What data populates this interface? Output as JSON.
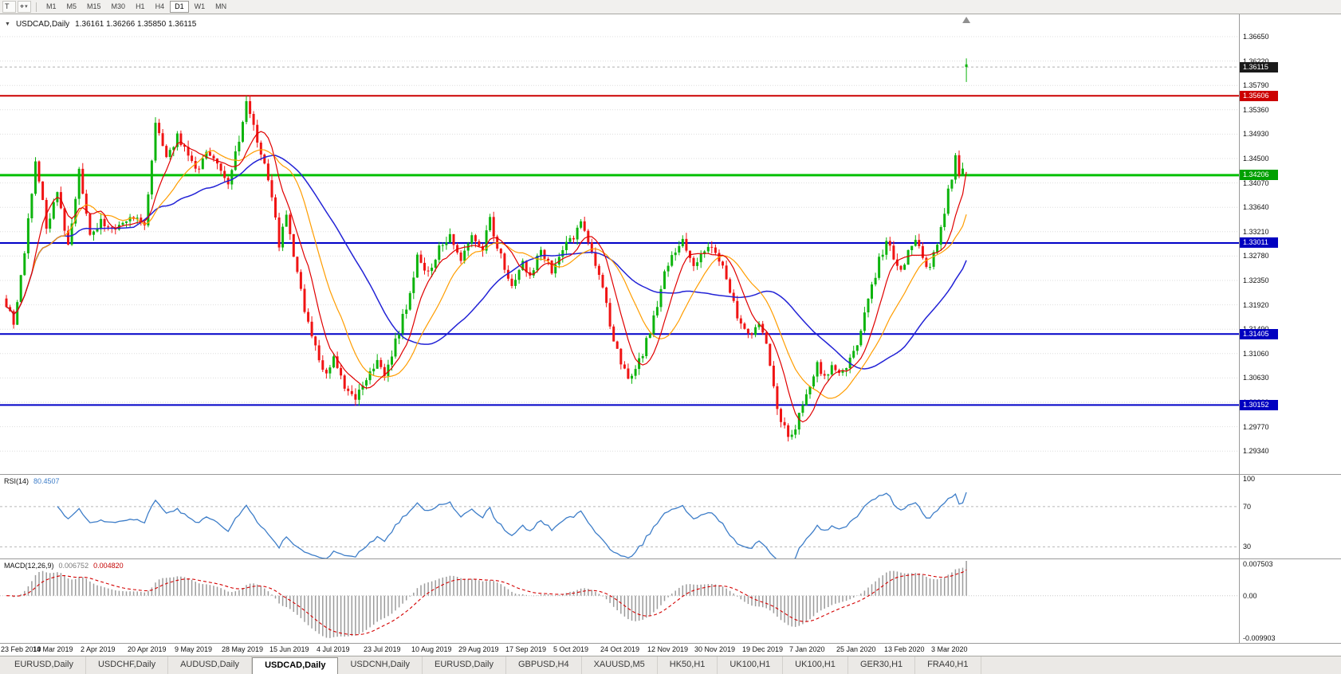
{
  "toolbar": {
    "tool1": "T",
    "tool2": "⌖",
    "caret": "▾",
    "timeframes": [
      {
        "label": "M1"
      },
      {
        "label": "M5"
      },
      {
        "label": "M15"
      },
      {
        "label": "M30"
      },
      {
        "label": "H1"
      },
      {
        "label": "H4"
      },
      {
        "label": "D1",
        "active": true
      },
      {
        "label": "W1"
      },
      {
        "label": "MN"
      }
    ]
  },
  "chart": {
    "symbol": "USDCAD,Daily",
    "ohlc_text": "1.36161 1.36266 1.35850 1.36115",
    "one_click_icon": "▼",
    "scroll_marker_icon": "▲",
    "price_axis": {
      "ticks": [
        1.3665,
        1.3622,
        1.3579,
        1.3536,
        1.3493,
        1.345,
        1.3407,
        1.3364,
        1.3321,
        1.3278,
        1.3235,
        1.3192,
        1.3149,
        1.3106,
        1.3063,
        1.302,
        1.2977,
        1.2934
      ],
      "current_price": 1.36115
    },
    "badges": [
      {
        "price": 1.36115,
        "label": "1.36115",
        "color": "#1a1a1a"
      },
      {
        "price": 1.35606,
        "label": "1.35606",
        "color": "#cc0000"
      },
      {
        "price": 1.34206,
        "label": "1.34206",
        "color": "#00a000"
      },
      {
        "price": 1.33011,
        "label": "1.33011",
        "color": "#0000c0"
      },
      {
        "price": 1.31405,
        "label": "1.31405",
        "color": "#0000c0"
      },
      {
        "price": 1.30152,
        "label": "1.30152",
        "color": "#0000c0"
      }
    ],
    "hlines": [
      {
        "price": 1.35606,
        "color": "#cc0000",
        "width": 2
      },
      {
        "price": 1.34206,
        "color": "#00c000",
        "width": 3
      },
      {
        "price": 1.33011,
        "color": "#0000c8",
        "width": 2
      },
      {
        "price": 1.31405,
        "color": "#0000c8",
        "width": 2
      },
      {
        "price": 1.30152,
        "color": "#0000c8",
        "width": 2
      }
    ],
    "current_bar": {
      "open": 1.36161,
      "high": 1.36266,
      "low": 1.3585,
      "close": 1.36115
    },
    "colors": {
      "up": "#0db40d",
      "down": "#f01414",
      "ma_fast": "#e00000",
      "ma_mid": "#ff9d00",
      "ma_slow": "#2222d6",
      "rsi": "#3d7dc8",
      "macd_hist": "#9c9c9c",
      "macd_signal": "#d40000"
    },
    "chart_data": {
      "type": "candlestick",
      "bar_count": 265,
      "dates": [
        "23 Feb 2019",
        "14 Mar 2019",
        "2 Apr 2019",
        "20 Apr 2019",
        "9 May 2019",
        "28 May 2019",
        "15 Jun 2019",
        "4 Jul 2019",
        "23 Jul 2019",
        "10 Aug 2019",
        "29 Aug 2019",
        "17 Sep 2019",
        "5 Oct 2019",
        "24 Oct 2019",
        "12 Nov 2019",
        "30 Nov 2019",
        "19 Dec 2019",
        "7 Jan 2020",
        "25 Jan 2020",
        "13 Feb 2020",
        "3 Mar 2020"
      ],
      "price_path": [
        [
          0,
          1.3195
        ],
        [
          2,
          1.3155
        ],
        [
          5,
          1.3285
        ],
        [
          8,
          1.345
        ],
        [
          11,
          1.333
        ],
        [
          14,
          1.339
        ],
        [
          17,
          1.3295
        ],
        [
          20,
          1.3425
        ],
        [
          23,
          1.331
        ],
        [
          26,
          1.334
        ],
        [
          30,
          1.332
        ],
        [
          34,
          1.3345
        ],
        [
          38,
          1.3335
        ],
        [
          41,
          1.351
        ],
        [
          44,
          1.3445
        ],
        [
          47,
          1.349
        ],
        [
          50,
          1.3455
        ],
        [
          52,
          1.3425
        ],
        [
          55,
          1.3465
        ],
        [
          58,
          1.3435
        ],
        [
          61,
          1.3405
        ],
        [
          64,
          1.348
        ],
        [
          66,
          1.3555
        ],
        [
          68,
          1.3505
        ],
        [
          71,
          1.344
        ],
        [
          73,
          1.3385
        ],
        [
          75,
          1.33
        ],
        [
          77,
          1.3355
        ],
        [
          79,
          1.3275
        ],
        [
          82,
          1.3185
        ],
        [
          85,
          1.3115
        ],
        [
          88,
          1.307
        ],
        [
          90,
          1.3095
        ],
        [
          93,
          1.3045
        ],
        [
          96,
          1.3028
        ],
        [
          99,
          1.3065
        ],
        [
          102,
          1.3095
        ],
        [
          104,
          1.307
        ],
        [
          107,
          1.3125
        ],
        [
          110,
          1.319
        ],
        [
          113,
          1.3275
        ],
        [
          116,
          1.3245
        ],
        [
          119,
          1.329
        ],
        [
          122,
          1.332
        ],
        [
          125,
          1.327
        ],
        [
          128,
          1.331
        ],
        [
          131,
          1.3295
        ],
        [
          133,
          1.334
        ],
        [
          136,
          1.3275
        ],
        [
          139,
          1.323
        ],
        [
          142,
          1.327
        ],
        [
          144,
          1.324
        ],
        [
          147,
          1.329
        ],
        [
          150,
          1.3255
        ],
        [
          153,
          1.329
        ],
        [
          156,
          1.331
        ],
        [
          158,
          1.334
        ],
        [
          161,
          1.329
        ],
        [
          164,
          1.322
        ],
        [
          167,
          1.313
        ],
        [
          169,
          1.3085
        ],
        [
          172,
          1.306
        ],
        [
          175,
          1.3105
        ],
        [
          178,
          1.317
        ],
        [
          181,
          1.3245
        ],
        [
          183,
          1.3275
        ],
        [
          186,
          1.3305
        ],
        [
          189,
          1.326
        ],
        [
          192,
          1.329
        ],
        [
          195,
          1.3285
        ],
        [
          198,
          1.324
        ],
        [
          201,
          1.3175
        ],
        [
          204,
          1.3135
        ],
        [
          207,
          1.3165
        ],
        [
          209,
          1.312
        ],
        [
          211,
          1.3045
        ],
        [
          213,
          1.2985
        ],
        [
          215,
          1.2958
        ],
        [
          217,
          1.2975
        ],
        [
          219,
          1.3015
        ],
        [
          221,
          1.3045
        ],
        [
          223,
          1.3085
        ],
        [
          225,
          1.306
        ],
        [
          227,
          1.309
        ],
        [
          229,
          1.3065
        ],
        [
          231,
          1.3085
        ],
        [
          234,
          1.312
        ],
        [
          236,
          1.318
        ],
        [
          238,
          1.3225
        ],
        [
          240,
          1.327
        ],
        [
          242,
          1.33
        ],
        [
          244,
          1.328
        ],
        [
          246,
          1.3255
        ],
        [
          248,
          1.3285
        ],
        [
          250,
          1.33
        ],
        [
          252,
          1.3275
        ],
        [
          254,
          1.3255
        ],
        [
          256,
          1.33
        ],
        [
          258,
          1.336
        ],
        [
          260,
          1.342
        ],
        [
          261,
          1.3455
        ],
        [
          262,
          1.3415
        ],
        [
          263,
          1.3435
        ],
        [
          264,
          1.3612
        ]
      ]
    }
  },
  "indicators": {
    "rsi": {
      "label": "RSI(14)",
      "value": "80.4507",
      "levels": [
        {
          "label": "100",
          "value": 100
        },
        {
          "label": "70",
          "value": 70
        },
        {
          "label": "30",
          "value": 30
        }
      ]
    },
    "macd": {
      "label": "MACD(12,26,9)",
      "value_main": "0.006752",
      "value_signal": "0.004820",
      "axis_top": "0.007503",
      "axis_zero": "0.00",
      "axis_bottom": "-0.009903"
    }
  },
  "tabs": [
    {
      "label": "EURUSD,Daily"
    },
    {
      "label": "USDCHF,Daily"
    },
    {
      "label": "AUDUSD,Daily"
    },
    {
      "label": "USDCAD,Daily",
      "active": true
    },
    {
      "label": "USDCNH,Daily"
    },
    {
      "label": "EURUSD,Daily"
    },
    {
      "label": "GBPUSD,H4"
    },
    {
      "label": "XAUUSD,M5"
    },
    {
      "label": "HK50,H1"
    },
    {
      "label": "UK100,H1"
    },
    {
      "label": "UK100,H1"
    },
    {
      "label": "GER30,H1"
    },
    {
      "label": "FRA40,H1"
    }
  ]
}
